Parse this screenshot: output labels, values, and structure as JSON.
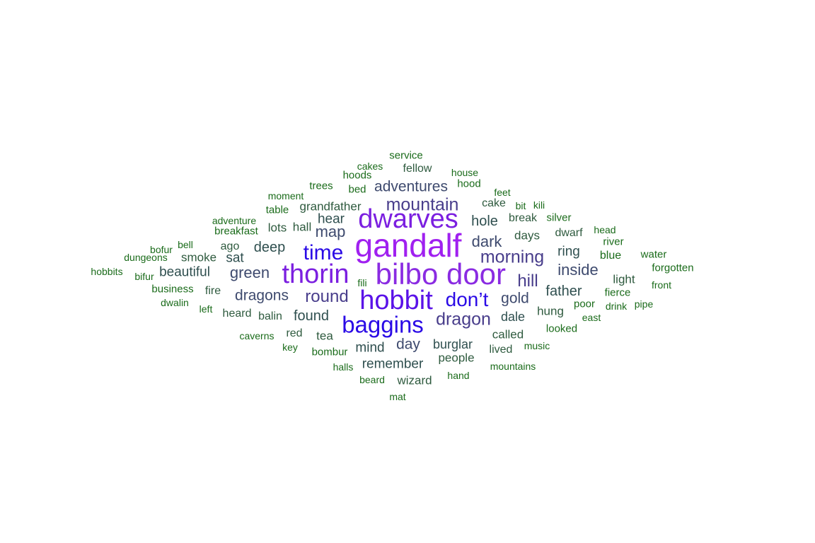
{
  "palette": {
    "violet": "#a020f0",
    "purple": "#8a2be2",
    "blue": "#1f00e6",
    "slate": "#483d8b",
    "darkslate": "#2f4f4f",
    "darkgreen": "#006400",
    "green": "#1a6b1a"
  },
  "words": [
    {
      "text": "gandalf",
      "weight": 46,
      "color": "#a020f0"
    },
    {
      "text": "bilbo",
      "weight": 42,
      "color": "#8a2be2"
    },
    {
      "text": "door",
      "weight": 42,
      "color": "#8a2be2"
    },
    {
      "text": "thorin",
      "weight": 38,
      "color": "#7b1fe0"
    },
    {
      "text": "dwarves",
      "weight": 38,
      "color": "#7b1fe0"
    },
    {
      "text": "hobbit",
      "weight": 38,
      "color": "#5a12e8"
    },
    {
      "text": "baggins",
      "weight": 33,
      "color": "#2a0ae6"
    },
    {
      "text": "time",
      "weight": 30,
      "color": "#2a0ae6"
    },
    {
      "text": "don’t",
      "weight": 28,
      "color": "#2a0ae6"
    },
    {
      "text": "mountain",
      "weight": 25,
      "color": "#483d8b"
    },
    {
      "text": "morning",
      "weight": 25,
      "color": "#483d8b"
    },
    {
      "text": "dragon",
      "weight": 25,
      "color": "#483d8b"
    },
    {
      "text": "round",
      "weight": 24,
      "color": "#483d8b"
    },
    {
      "text": "hill",
      "weight": 24,
      "color": "#483d8b"
    },
    {
      "text": "dark",
      "weight": 22,
      "color": "#3e4a6e"
    },
    {
      "text": "map",
      "weight": 22,
      "color": "#3e4a6e"
    },
    {
      "text": "green",
      "weight": 22,
      "color": "#3e4a6e"
    },
    {
      "text": "inside",
      "weight": 22,
      "color": "#3e4a6e"
    },
    {
      "text": "adventures",
      "weight": 21,
      "color": "#3e4a6e"
    },
    {
      "text": "dragons",
      "weight": 21,
      "color": "#3e4a6e"
    },
    {
      "text": "gold",
      "weight": 21,
      "color": "#3e4a6e"
    },
    {
      "text": "day",
      "weight": 21,
      "color": "#3e4a6e"
    },
    {
      "text": "hole",
      "weight": 20,
      "color": "#2f4f4f"
    },
    {
      "text": "deep",
      "weight": 20,
      "color": "#2f4f4f"
    },
    {
      "text": "found",
      "weight": 20,
      "color": "#2f4f4f"
    },
    {
      "text": "father",
      "weight": 20,
      "color": "#2f4f4f"
    },
    {
      "text": "remember",
      "weight": 19,
      "color": "#2f4f4f"
    },
    {
      "text": "hear",
      "weight": 19,
      "color": "#2f4f4f"
    },
    {
      "text": "ring",
      "weight": 19,
      "color": "#2f4f4f"
    },
    {
      "text": "sat",
      "weight": 19,
      "color": "#2f4f4f"
    },
    {
      "text": "beautiful",
      "weight": 19,
      "color": "#2f4f4f"
    },
    {
      "text": "mind",
      "weight": 19,
      "color": "#2f4f4f"
    },
    {
      "text": "burglar",
      "weight": 18,
      "color": "#2f4f4f"
    },
    {
      "text": "dale",
      "weight": 18,
      "color": "#2f4f4f"
    },
    {
      "text": "grandfather",
      "weight": 17,
      "color": "#2e5a3e"
    },
    {
      "text": "days",
      "weight": 17,
      "color": "#2e5a3e"
    },
    {
      "text": "smoke",
      "weight": 17,
      "color": "#2e5a3e"
    },
    {
      "text": "lots",
      "weight": 17,
      "color": "#2e5a3e"
    },
    {
      "text": "hall",
      "weight": 17,
      "color": "#2e5a3e"
    },
    {
      "text": "tea",
      "weight": 17,
      "color": "#2e5a3e"
    },
    {
      "text": "people",
      "weight": 17,
      "color": "#2e5a3e"
    },
    {
      "text": "wizard",
      "weight": 17,
      "color": "#2e5a3e"
    },
    {
      "text": "light",
      "weight": 17,
      "color": "#2e5a3e"
    },
    {
      "text": "hung",
      "weight": 17,
      "color": "#2e5a3e"
    },
    {
      "text": "called",
      "weight": 17,
      "color": "#2e5a3e"
    },
    {
      "text": "ago",
      "weight": 16,
      "color": "#2e5a3e"
    },
    {
      "text": "fellow",
      "weight": 16,
      "color": "#2e5a3e"
    },
    {
      "text": "cake",
      "weight": 16,
      "color": "#2e5a3e"
    },
    {
      "text": "break",
      "weight": 16,
      "color": "#2e5a3e"
    },
    {
      "text": "heard",
      "weight": 16,
      "color": "#2e5a3e"
    },
    {
      "text": "balin",
      "weight": 16,
      "color": "#2e5a3e"
    },
    {
      "text": "fire",
      "weight": 16,
      "color": "#2e5a3e"
    },
    {
      "text": "red",
      "weight": 16,
      "color": "#2e5a3e"
    },
    {
      "text": "lived",
      "weight": 16,
      "color": "#2e5a3e"
    },
    {
      "text": "dwarf",
      "weight": 16,
      "color": "#2e5a3e"
    },
    {
      "text": "silver",
      "weight": 15,
      "color": "#1a6b1a"
    },
    {
      "text": "blue",
      "weight": 16,
      "color": "#1a6b1a"
    },
    {
      "text": "water",
      "weight": 15,
      "color": "#1a6b1a"
    },
    {
      "text": "forgotten",
      "weight": 15,
      "color": "#1a6b1a"
    },
    {
      "text": "fierce",
      "weight": 15,
      "color": "#1a6b1a"
    },
    {
      "text": "poor",
      "weight": 15,
      "color": "#1a6b1a"
    },
    {
      "text": "looked",
      "weight": 15,
      "color": "#1a6b1a"
    },
    {
      "text": "river",
      "weight": 15,
      "color": "#1a6b1a"
    },
    {
      "text": "hood",
      "weight": 15,
      "color": "#1a6b1a"
    },
    {
      "text": "hoods",
      "weight": 15,
      "color": "#1a6b1a"
    },
    {
      "text": "trees",
      "weight": 15,
      "color": "#1a6b1a"
    },
    {
      "text": "service",
      "weight": 15,
      "color": "#1a6b1a"
    },
    {
      "text": "bed",
      "weight": 15,
      "color": "#1a6b1a"
    },
    {
      "text": "table",
      "weight": 15,
      "color": "#1a6b1a"
    },
    {
      "text": "breakfast",
      "weight": 15,
      "color": "#1a6b1a"
    },
    {
      "text": "business",
      "weight": 15,
      "color": "#1a6b1a"
    },
    {
      "text": "bombur",
      "weight": 15,
      "color": "#1a6b1a"
    },
    {
      "text": "beard",
      "weight": 14,
      "color": "#1a6b1a"
    },
    {
      "text": "cakes",
      "weight": 14,
      "color": "#1a6b1a"
    },
    {
      "text": "house",
      "weight": 14,
      "color": "#1a6b1a"
    },
    {
      "text": "feet",
      "weight": 14,
      "color": "#1a6b1a"
    },
    {
      "text": "bit",
      "weight": 14,
      "color": "#1a6b1a"
    },
    {
      "text": "kili",
      "weight": 14,
      "color": "#1a6b1a"
    },
    {
      "text": "head",
      "weight": 14,
      "color": "#1a6b1a"
    },
    {
      "text": "moment",
      "weight": 14,
      "color": "#1a6b1a"
    },
    {
      "text": "adventure",
      "weight": 14,
      "color": "#1a6b1a"
    },
    {
      "text": "bell",
      "weight": 14,
      "color": "#1a6b1a"
    },
    {
      "text": "bofur",
      "weight": 14,
      "color": "#1a6b1a"
    },
    {
      "text": "dungeons",
      "weight": 14,
      "color": "#1a6b1a"
    },
    {
      "text": "hobbits",
      "weight": 14,
      "color": "#1a6b1a"
    },
    {
      "text": "bifur",
      "weight": 14,
      "color": "#1a6b1a"
    },
    {
      "text": "dwalin",
      "weight": 14,
      "color": "#1a6b1a"
    },
    {
      "text": "left",
      "weight": 14,
      "color": "#1a6b1a"
    },
    {
      "text": "caverns",
      "weight": 14,
      "color": "#1a6b1a"
    },
    {
      "text": "key",
      "weight": 14,
      "color": "#1a6b1a"
    },
    {
      "text": "halls",
      "weight": 14,
      "color": "#1a6b1a"
    },
    {
      "text": "mat",
      "weight": 14,
      "color": "#1a6b1a"
    },
    {
      "text": "hand",
      "weight": 14,
      "color": "#1a6b1a"
    },
    {
      "text": "mountains",
      "weight": 14,
      "color": "#1a6b1a"
    },
    {
      "text": "music",
      "weight": 14,
      "color": "#1a6b1a"
    },
    {
      "text": "east",
      "weight": 14,
      "color": "#1a6b1a"
    },
    {
      "text": "drink",
      "weight": 14,
      "color": "#1a6b1a"
    },
    {
      "text": "pipe",
      "weight": 14,
      "color": "#1a6b1a"
    },
    {
      "text": "front",
      "weight": 14,
      "color": "#1a6b1a"
    },
    {
      "text": "fili",
      "weight": 14,
      "color": "#1a6b1a"
    }
  ]
}
